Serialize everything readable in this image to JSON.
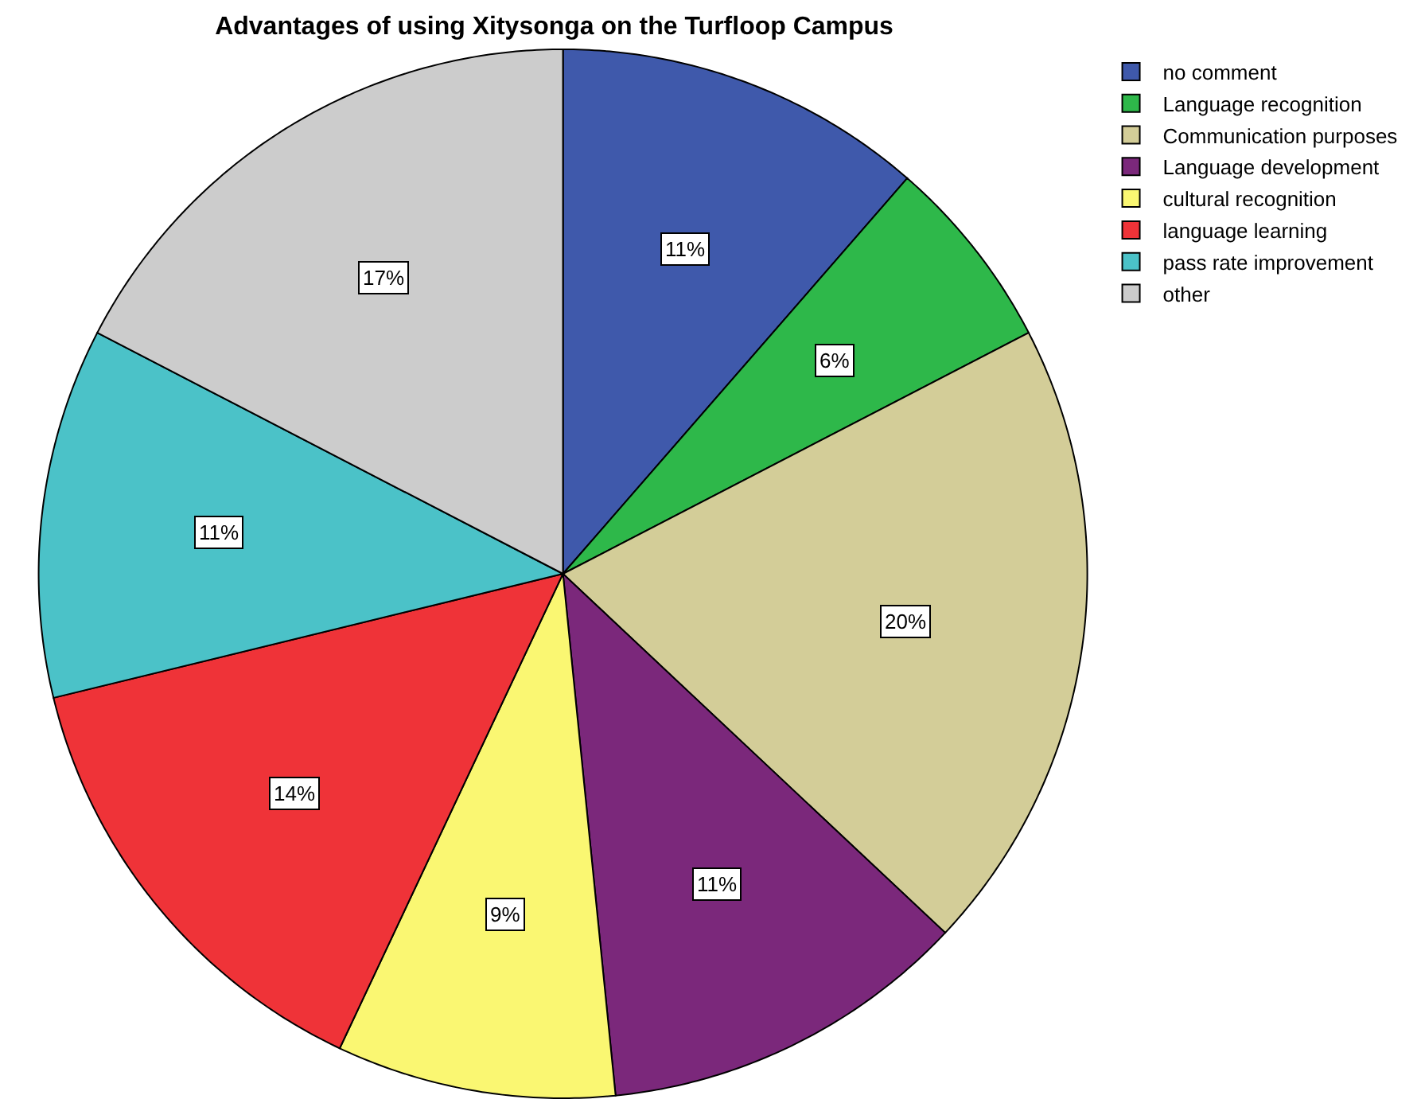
{
  "chart_data": {
    "type": "pie",
    "title": "Advantages of using Xitysonga on the Turfloop Campus",
    "categories": [
      "no comment",
      "Language recognition",
      "Communication purposes",
      "Language development",
      "cultural recognition",
      "language learning",
      "pass rate improvement",
      "other"
    ],
    "values": [
      11.4,
      6.0,
      19.6,
      11.4,
      8.6,
      14.2,
      11.4,
      17.4
    ],
    "value_labels": [
      "11%",
      "6%",
      "20%",
      "11%",
      "9%",
      "14%",
      "11%",
      "17%"
    ],
    "colors": [
      "#3f59ab",
      "#2eb84a",
      "#d3cd98",
      "#7b287b",
      "#faf772",
      "#ef3338",
      "#4bc2c8",
      "#cccccc"
    ],
    "legend": "top right"
  }
}
